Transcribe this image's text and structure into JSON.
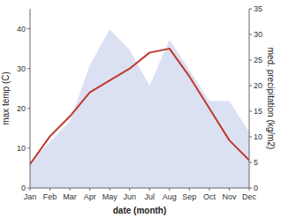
{
  "chart_data": {
    "type": "line",
    "categories": [
      "Jan",
      "Feb",
      "Mar",
      "Apr",
      "May",
      "Jun",
      "Jul",
      "Aug",
      "Sep",
      "Oct",
      "Nov",
      "Dec"
    ],
    "series": [
      {
        "type": "area",
        "axis": "y2",
        "color": "#b8c4e8",
        "values": [
          5,
          9,
          13,
          24,
          31,
          27,
          20,
          29,
          23,
          17,
          17,
          11
        ]
      },
      {
        "type": "line",
        "color": "#c0392b",
        "values": [
          6,
          13,
          18,
          24,
          27,
          30,
          34,
          35,
          28,
          20,
          12,
          7
        ]
      }
    ],
    "ylim": [
      0,
      45
    ],
    "yticks": [
      0,
      10,
      20,
      30,
      40
    ],
    "y2lim": [
      0,
      35
    ],
    "y2ticks": [
      0,
      5,
      10,
      15,
      20,
      25,
      30,
      35
    ],
    "ylabel": "max temp (C)",
    "y2label": "med. precipitation (kg/m2)",
    "xlabel": "date (month)",
    "grid": false
  }
}
